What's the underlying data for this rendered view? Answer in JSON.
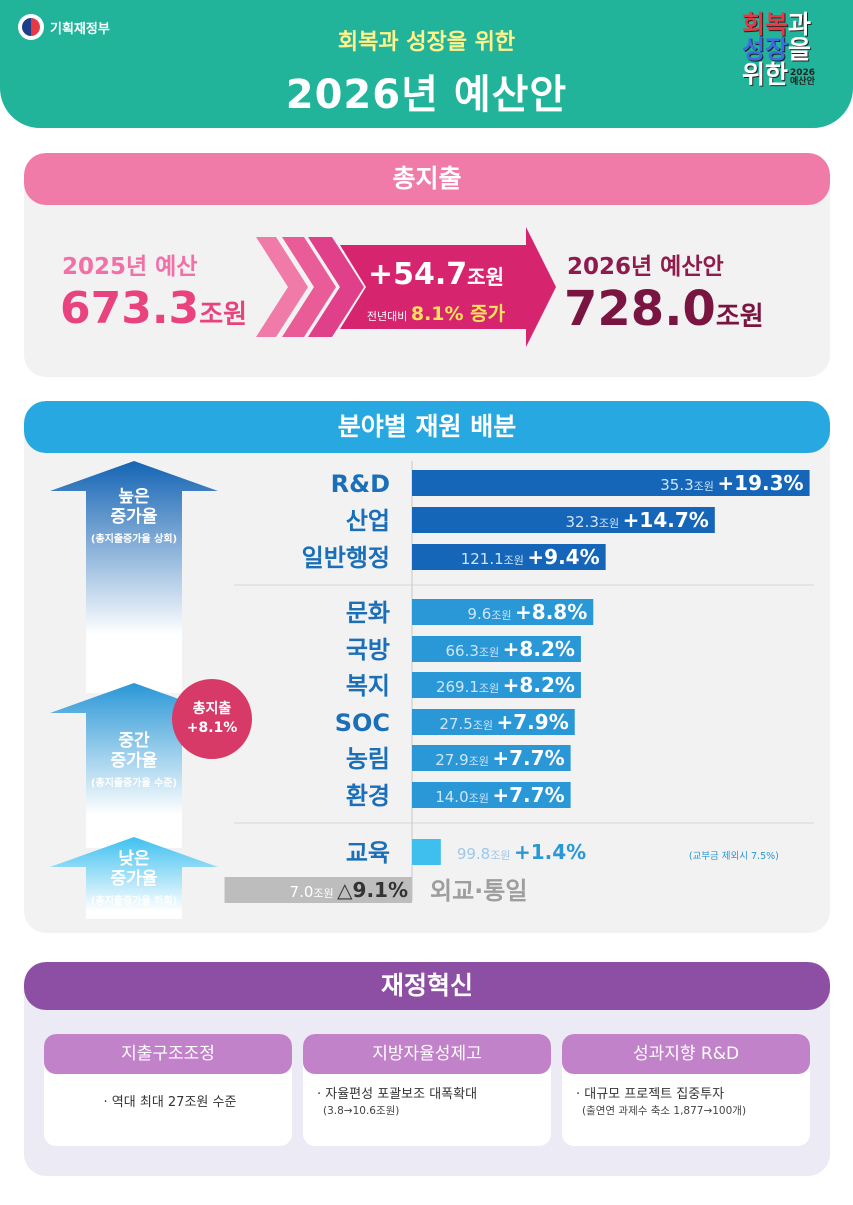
{
  "header": {
    "ministry": "기획재정부",
    "subtitle": "회복과 성장을 위한",
    "title": "2026년 예산안",
    "logo": {
      "line1_a": "회복",
      "line1_b": "과",
      "line2_a": "성장",
      "line2_b": "을",
      "line3": "위한",
      "year": "2026",
      "tag": "예산안"
    }
  },
  "total_spending": {
    "heading": "총지출",
    "prev_label": "2025년 예산",
    "prev_value": "673.3",
    "prev_unit": "조원",
    "increase_amount": "+54.7",
    "increase_unit": "조원",
    "yoy_prefix": "전년대비",
    "yoy_text": "8.1% 증가",
    "next_label": "2026년 예산안",
    "next_value": "728.0",
    "next_unit": "조원"
  },
  "allocation": {
    "heading": "분야별 재원 배분",
    "total_badge": [
      "총지출",
      "+8.1%"
    ],
    "tiers": [
      {
        "title1": "높은",
        "title2": "증가율",
        "note": "(총지출증가율 상회)"
      },
      {
        "title1": "중간",
        "title2": "증가율",
        "note": "(총지출증가율 수준)"
      },
      {
        "title1": "낮은",
        "title2": "증가율",
        "note": "(총지출증가율 하회)"
      }
    ],
    "edu_note": "(교부금 제외시 7.5%)"
  },
  "colors": {
    "high": "#1565b8",
    "mid": "#2a97d6",
    "low": "#3fbfee",
    "negative": "#bdbdbd",
    "label_blue": "#1a6fb8",
    "label_gray": "#9e9e9e"
  },
  "chart_data": {
    "type": "bar",
    "title": "분야별 재원 배분",
    "categories": [
      "R&D",
      "산업",
      "일반행정",
      "문화",
      "국방",
      "복지",
      "SOC",
      "농림",
      "환경",
      "교육",
      "외교·통일"
    ],
    "amounts": [
      "35.3",
      "32.3",
      "121.1",
      "9.6",
      "66.3",
      "269.1",
      "27.5",
      "27.9",
      "14.0",
      "99.8",
      "7.0"
    ],
    "amount_unit": "조원",
    "growth_labels": [
      "+19.3%",
      "+14.7%",
      "+9.4%",
      "+8.8%",
      "+8.2%",
      "+8.2%",
      "+7.9%",
      "+7.7%",
      "+7.7%",
      "+1.4%",
      "△9.1%"
    ],
    "values": [
      19.3,
      14.7,
      9.4,
      8.8,
      8.2,
      8.2,
      7.9,
      7.7,
      7.7,
      1.4,
      -9.1
    ],
    "tier": [
      "high",
      "high",
      "high",
      "mid",
      "mid",
      "mid",
      "mid",
      "mid",
      "mid",
      "low",
      "low"
    ]
  },
  "innovation": {
    "heading": "재정혁신",
    "cards": [
      {
        "title": "지출구조조정",
        "bullet": "· 역대 최대 27조원 수준",
        "sub": ""
      },
      {
        "title": "지방자율성제고",
        "bullet": "· 자율편성 포괄보조 대폭확대",
        "sub": "(3.8→10.6조원)"
      },
      {
        "title": "성과지향 R&D",
        "bullet": "· 대규모 프로젝트 집중투자",
        "sub": "(출연연 과제수 축소 1,877→100개)"
      }
    ]
  }
}
